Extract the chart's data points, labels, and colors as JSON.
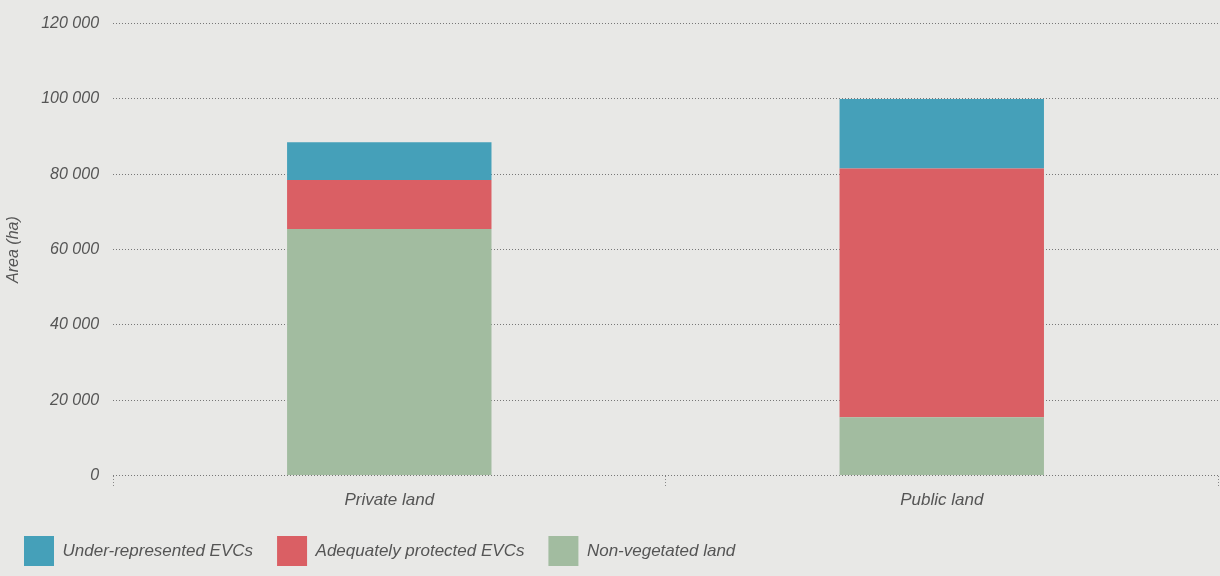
{
  "chart_data": {
    "type": "bar",
    "stacked": true,
    "ylabel": "Area (ha)",
    "categories": [
      "Private land",
      "Public land"
    ],
    "series": [
      {
        "name": "Non-vegetated land",
        "color": "#a2bca0",
        "values": [
          65500,
          15500
        ]
      },
      {
        "name": "Adequately protected EVCs",
        "color": "#da5f64",
        "values": [
          13000,
          66000
        ]
      },
      {
        "name": "Under-represented EVCs",
        "color": "#45a0b9",
        "values": [
          10000,
          18500
        ]
      }
    ],
    "ylim": [
      0,
      120000
    ],
    "yticks": [
      {
        "value": 0,
        "label": "0"
      },
      {
        "value": 20000,
        "label": "20 000"
      },
      {
        "value": 40000,
        "label": "40 000"
      },
      {
        "value": 60000,
        "label": "60 000"
      },
      {
        "value": 80000,
        "label": "80 000"
      },
      {
        "value": 100000,
        "label": "100 000"
      },
      {
        "value": 120000,
        "label": "120 000"
      }
    ],
    "grid": "y",
    "legend": "bottom"
  }
}
